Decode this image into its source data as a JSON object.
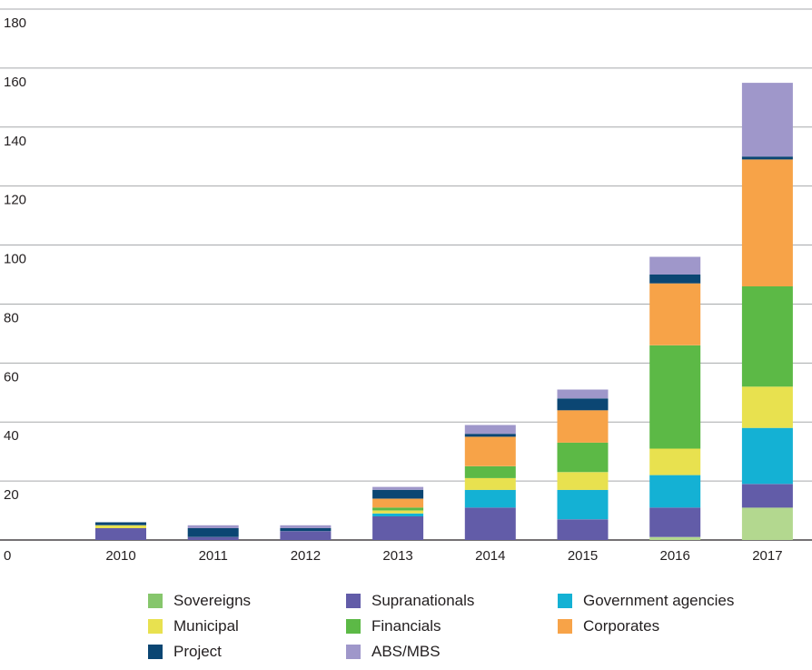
{
  "chart_data": {
    "type": "bar",
    "stacked": true,
    "title": "",
    "xlabel": "",
    "ylabel": "",
    "ylim": [
      0,
      180
    ],
    "yticks": [
      0,
      20,
      40,
      60,
      80,
      100,
      120,
      140,
      160,
      180
    ],
    "grid": true,
    "legend_position": "bottom",
    "categories": [
      "2010",
      "2011",
      "2012",
      "2013",
      "2014",
      "2015",
      "2016",
      "2017"
    ],
    "series": [
      {
        "name": "Sovereigns",
        "color": "#b3d88f",
        "values": [
          0,
          0,
          0,
          0,
          0,
          0,
          1,
          11
        ]
      },
      {
        "name": "Supranationals",
        "color": "#625ca8",
        "values": [
          4,
          1,
          3,
          8,
          11,
          7,
          10,
          8
        ]
      },
      {
        "name": "Government agencies",
        "color": "#14b1d4",
        "values": [
          0,
          0,
          0,
          1,
          6,
          10,
          11,
          19
        ]
      },
      {
        "name": "Municipal",
        "color": "#e8e14f",
        "values": [
          1,
          0,
          0,
          1,
          4,
          6,
          9,
          14
        ]
      },
      {
        "name": "Financials",
        "color": "#5cb946",
        "values": [
          0,
          0,
          0,
          1,
          4,
          10,
          35,
          34
        ]
      },
      {
        "name": "Corporates",
        "color": "#f7a348",
        "values": [
          0,
          0,
          0,
          3,
          10,
          11,
          21,
          43
        ]
      },
      {
        "name": "Project",
        "color": "#0b4673",
        "values": [
          1,
          3,
          1,
          3,
          1,
          4,
          3,
          1
        ]
      },
      {
        "name": "ABS/MBS",
        "color": "#9f97ca",
        "values": [
          0,
          1,
          1,
          1,
          3,
          3,
          6,
          25
        ]
      }
    ]
  },
  "legend": {
    "items": [
      {
        "label": "Sovereigns",
        "color": "#86c66c"
      },
      {
        "label": "Supranationals",
        "color": "#625ca8"
      },
      {
        "label": "Government agencies",
        "color": "#14b1d4"
      },
      {
        "label": "Municipal",
        "color": "#e8e14f"
      },
      {
        "label": "Financials",
        "color": "#5cb946"
      },
      {
        "label": "Corporates",
        "color": "#f7a348"
      },
      {
        "label": "Project",
        "color": "#0b4673"
      },
      {
        "label": "ABS/MBS",
        "color": "#9f97ca"
      }
    ]
  }
}
